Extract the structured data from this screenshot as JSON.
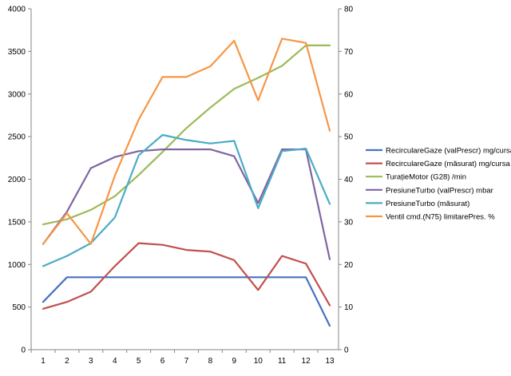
{
  "chart_data": {
    "type": "line",
    "x": [
      1,
      2,
      3,
      4,
      5,
      6,
      7,
      8,
      9,
      10,
      11,
      12,
      13
    ],
    "y_left": {
      "min": 0,
      "max": 4000,
      "step": 500
    },
    "y_right": {
      "min": 0,
      "max": 80,
      "step": 10
    },
    "grid": false,
    "legend_position": "right",
    "series": [
      {
        "name": "RecirculareGaze (valPrescr)  mg/cursa",
        "axis": "left",
        "color": "#4472C4",
        "values": [
          560,
          850,
          850,
          850,
          850,
          850,
          850,
          850,
          850,
          850,
          850,
          850,
          280
        ]
      },
      {
        "name": "RecirculareGaze (măsurat)  mg/cursa",
        "axis": "left",
        "color": "#C0504D",
        "values": [
          480,
          560,
          680,
          980,
          1250,
          1230,
          1170,
          1150,
          1050,
          700,
          1100,
          1010,
          520
        ]
      },
      {
        "name": "TurațieMotor (G28)  /min",
        "axis": "left",
        "color": "#9BBB59",
        "values": [
          1470,
          1530,
          1640,
          1800,
          2050,
          2320,
          2600,
          2840,
          3060,
          3190,
          3330,
          3570,
          3570
        ]
      },
      {
        "name": "PresiuneTurbo (valPrescr)  mbar",
        "axis": "left",
        "color": "#8064A2",
        "values": [
          1240,
          1620,
          2130,
          2260,
          2330,
          2350,
          2350,
          2350,
          2270,
          1720,
          2350,
          2350,
          1060
        ]
      },
      {
        "name": "PresiuneTurbo (măsurat)",
        "axis": "left",
        "color": "#4BACC6",
        "values": [
          980,
          1100,
          1250,
          1550,
          2280,
          2520,
          2460,
          2420,
          2450,
          1660,
          2330,
          2360,
          1710
        ]
      },
      {
        "name": "Ventil cmd.(N75) limitarePres.  %",
        "axis": "right",
        "color": "#F79646",
        "values": [
          24.8,
          32,
          24.8,
          40.8,
          54,
          64,
          64,
          66.5,
          72.5,
          58.5,
          73,
          72,
          51.4
        ]
      }
    ]
  }
}
